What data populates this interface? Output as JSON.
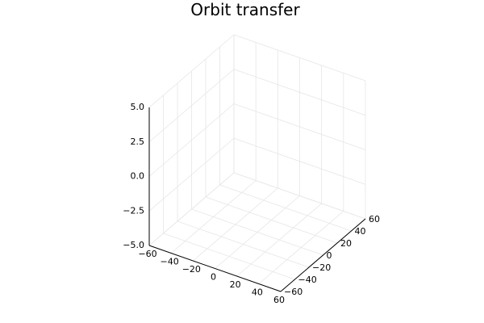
{
  "chart_data": {
    "type": "line",
    "title": "Orbit transfer",
    "xlabel": "",
    "ylabel": "",
    "zlabel": "",
    "xlim": [
      -60,
      60
    ],
    "ylim": [
      -60,
      60
    ],
    "zlim": [
      -5,
      5
    ],
    "x_ticks": [
      "−60",
      "−40",
      "−20",
      "0",
      "20",
      "40",
      "60"
    ],
    "y_ticks": [
      "−60",
      "−40",
      "−20",
      "0",
      "20",
      "40",
      "60"
    ],
    "z_ticks": [
      "−5.0",
      "−2.5",
      "0.0",
      "2.5",
      "5.0"
    ],
    "grid": true,
    "legend": "none",
    "series": []
  }
}
